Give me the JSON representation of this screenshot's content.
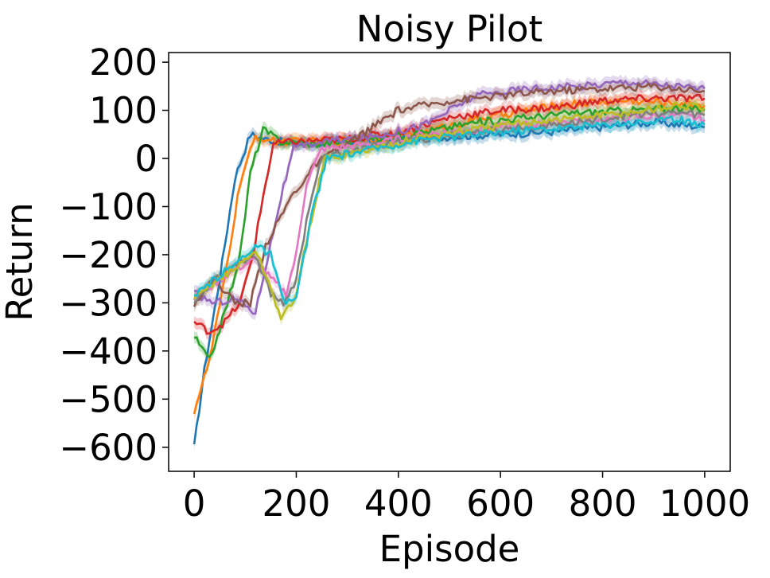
{
  "chart_data": {
    "type": "line",
    "title": "Noisy Pilot",
    "xlabel": "Episode",
    "ylabel": "Return",
    "xlim": [
      -50,
      1050
    ],
    "ylim": [
      -650,
      220
    ],
    "xticks": [
      0,
      200,
      400,
      600,
      800,
      1000
    ],
    "yticks": [
      200,
      100,
      0,
      -100,
      -200,
      -300,
      -400,
      -500,
      -600
    ],
    "xtick_labels": [
      "0",
      "200",
      "400",
      "600",
      "800",
      "1000"
    ],
    "ytick_labels": [
      "200",
      "100",
      "0",
      "−100",
      "−200",
      "−300",
      "−400",
      "−500",
      "−600"
    ],
    "grid": false,
    "legend": "none",
    "shaded_band": true,
    "series": [
      {
        "color": "#1f77b4",
        "points": [
          [
            0,
            -600
          ],
          [
            20,
            -440
          ],
          [
            50,
            -250
          ],
          [
            80,
            -40
          ],
          [
            110,
            50
          ],
          [
            140,
            40
          ],
          [
            200,
            30
          ],
          [
            300,
            35
          ],
          [
            400,
            40
          ],
          [
            500,
            45
          ],
          [
            600,
            50
          ],
          [
            700,
            55
          ],
          [
            800,
            65
          ],
          [
            900,
            75
          ],
          [
            1000,
            65
          ]
        ]
      },
      {
        "color": "#ff7f0e",
        "points": [
          [
            0,
            -525
          ],
          [
            30,
            -420
          ],
          [
            60,
            -250
          ],
          [
            90,
            -50
          ],
          [
            120,
            45
          ],
          [
            160,
            35
          ],
          [
            250,
            35
          ],
          [
            350,
            40
          ],
          [
            450,
            55
          ],
          [
            550,
            80
          ],
          [
            650,
            100
          ],
          [
            750,
            115
          ],
          [
            850,
            120
          ],
          [
            950,
            115
          ],
          [
            1000,
            110
          ]
        ]
      },
      {
        "color": "#2ca02c",
        "points": [
          [
            0,
            -370
          ],
          [
            30,
            -420
          ],
          [
            60,
            -320
          ],
          [
            90,
            -200
          ],
          [
            110,
            -30
          ],
          [
            135,
            60
          ],
          [
            170,
            35
          ],
          [
            250,
            30
          ],
          [
            350,
            40
          ],
          [
            450,
            55
          ],
          [
            550,
            75
          ],
          [
            650,
            85
          ],
          [
            750,
            95
          ],
          [
            850,
            100
          ],
          [
            950,
            105
          ],
          [
            1000,
            100
          ]
        ]
      },
      {
        "color": "#d62728",
        "points": [
          [
            0,
            -340
          ],
          [
            30,
            -360
          ],
          [
            60,
            -340
          ],
          [
            90,
            -300
          ],
          [
            115,
            -200
          ],
          [
            135,
            -80
          ],
          [
            155,
            30
          ],
          [
            200,
            35
          ],
          [
            300,
            40
          ],
          [
            400,
            55
          ],
          [
            500,
            85
          ],
          [
            600,
            100
          ],
          [
            700,
            105
          ],
          [
            800,
            120
          ],
          [
            900,
            125
          ],
          [
            1000,
            125
          ]
        ]
      },
      {
        "color": "#9467bd",
        "points": [
          [
            0,
            -280
          ],
          [
            40,
            -300
          ],
          [
            80,
            -290
          ],
          [
            120,
            -320
          ],
          [
            145,
            -200
          ],
          [
            170,
            -80
          ],
          [
            195,
            20
          ],
          [
            250,
            35
          ],
          [
            350,
            45
          ],
          [
            450,
            70
          ],
          [
            550,
            130
          ],
          [
            650,
            145
          ],
          [
            750,
            150
          ],
          [
            850,
            160
          ],
          [
            950,
            150
          ],
          [
            1000,
            145
          ]
        ]
      },
      {
        "color": "#8c564b",
        "points": [
          [
            0,
            -300
          ],
          [
            40,
            -250
          ],
          [
            80,
            -300
          ],
          [
            110,
            -300
          ],
          [
            140,
            -180
          ],
          [
            190,
            -80
          ],
          [
            240,
            -10
          ],
          [
            300,
            30
          ],
          [
            400,
            100
          ],
          [
            500,
            120
          ],
          [
            600,
            130
          ],
          [
            700,
            140
          ],
          [
            800,
            145
          ],
          [
            900,
            150
          ],
          [
            1000,
            140
          ]
        ]
      },
      {
        "color": "#e377c2",
        "points": [
          [
            0,
            -290
          ],
          [
            40,
            -260
          ],
          [
            80,
            -230
          ],
          [
            120,
            -210
          ],
          [
            150,
            -250
          ],
          [
            180,
            -280
          ],
          [
            200,
            -200
          ],
          [
            220,
            -50
          ],
          [
            250,
            20
          ],
          [
            350,
            30
          ],
          [
            450,
            50
          ],
          [
            550,
            60
          ],
          [
            650,
            70
          ],
          [
            750,
            80
          ],
          [
            850,
            85
          ],
          [
            950,
            90
          ],
          [
            1000,
            80
          ]
        ]
      },
      {
        "color": "#7f7f7f",
        "points": [
          [
            0,
            -300
          ],
          [
            40,
            -250
          ],
          [
            80,
            -220
          ],
          [
            120,
            -200
          ],
          [
            150,
            -280
          ],
          [
            175,
            -300
          ],
          [
            200,
            -250
          ],
          [
            225,
            -100
          ],
          [
            250,
            0
          ],
          [
            350,
            25
          ],
          [
            450,
            40
          ],
          [
            550,
            55
          ],
          [
            650,
            65
          ],
          [
            750,
            75
          ],
          [
            850,
            90
          ],
          [
            950,
            95
          ],
          [
            1000,
            90
          ]
        ]
      },
      {
        "color": "#bcbd22",
        "points": [
          [
            0,
            -295
          ],
          [
            40,
            -255
          ],
          [
            80,
            -230
          ],
          [
            120,
            -190
          ],
          [
            150,
            -270
          ],
          [
            170,
            -330
          ],
          [
            195,
            -300
          ],
          [
            225,
            -150
          ],
          [
            255,
            0
          ],
          [
            350,
            20
          ],
          [
            450,
            45
          ],
          [
            550,
            60
          ],
          [
            650,
            75
          ],
          [
            750,
            85
          ],
          [
            850,
            95
          ],
          [
            950,
            110
          ],
          [
            1000,
            105
          ]
        ]
      },
      {
        "color": "#17becf",
        "points": [
          [
            0,
            -290
          ],
          [
            40,
            -250
          ],
          [
            80,
            -220
          ],
          [
            120,
            -180
          ],
          [
            150,
            -200
          ],
          [
            175,
            -300
          ],
          [
            200,
            -290
          ],
          [
            230,
            -120
          ],
          [
            260,
            0
          ],
          [
            350,
            20
          ],
          [
            450,
            40
          ],
          [
            550,
            50
          ],
          [
            650,
            60
          ],
          [
            750,
            65
          ],
          [
            850,
            75
          ],
          [
            950,
            80
          ],
          [
            1000,
            70
          ]
        ]
      }
    ]
  }
}
